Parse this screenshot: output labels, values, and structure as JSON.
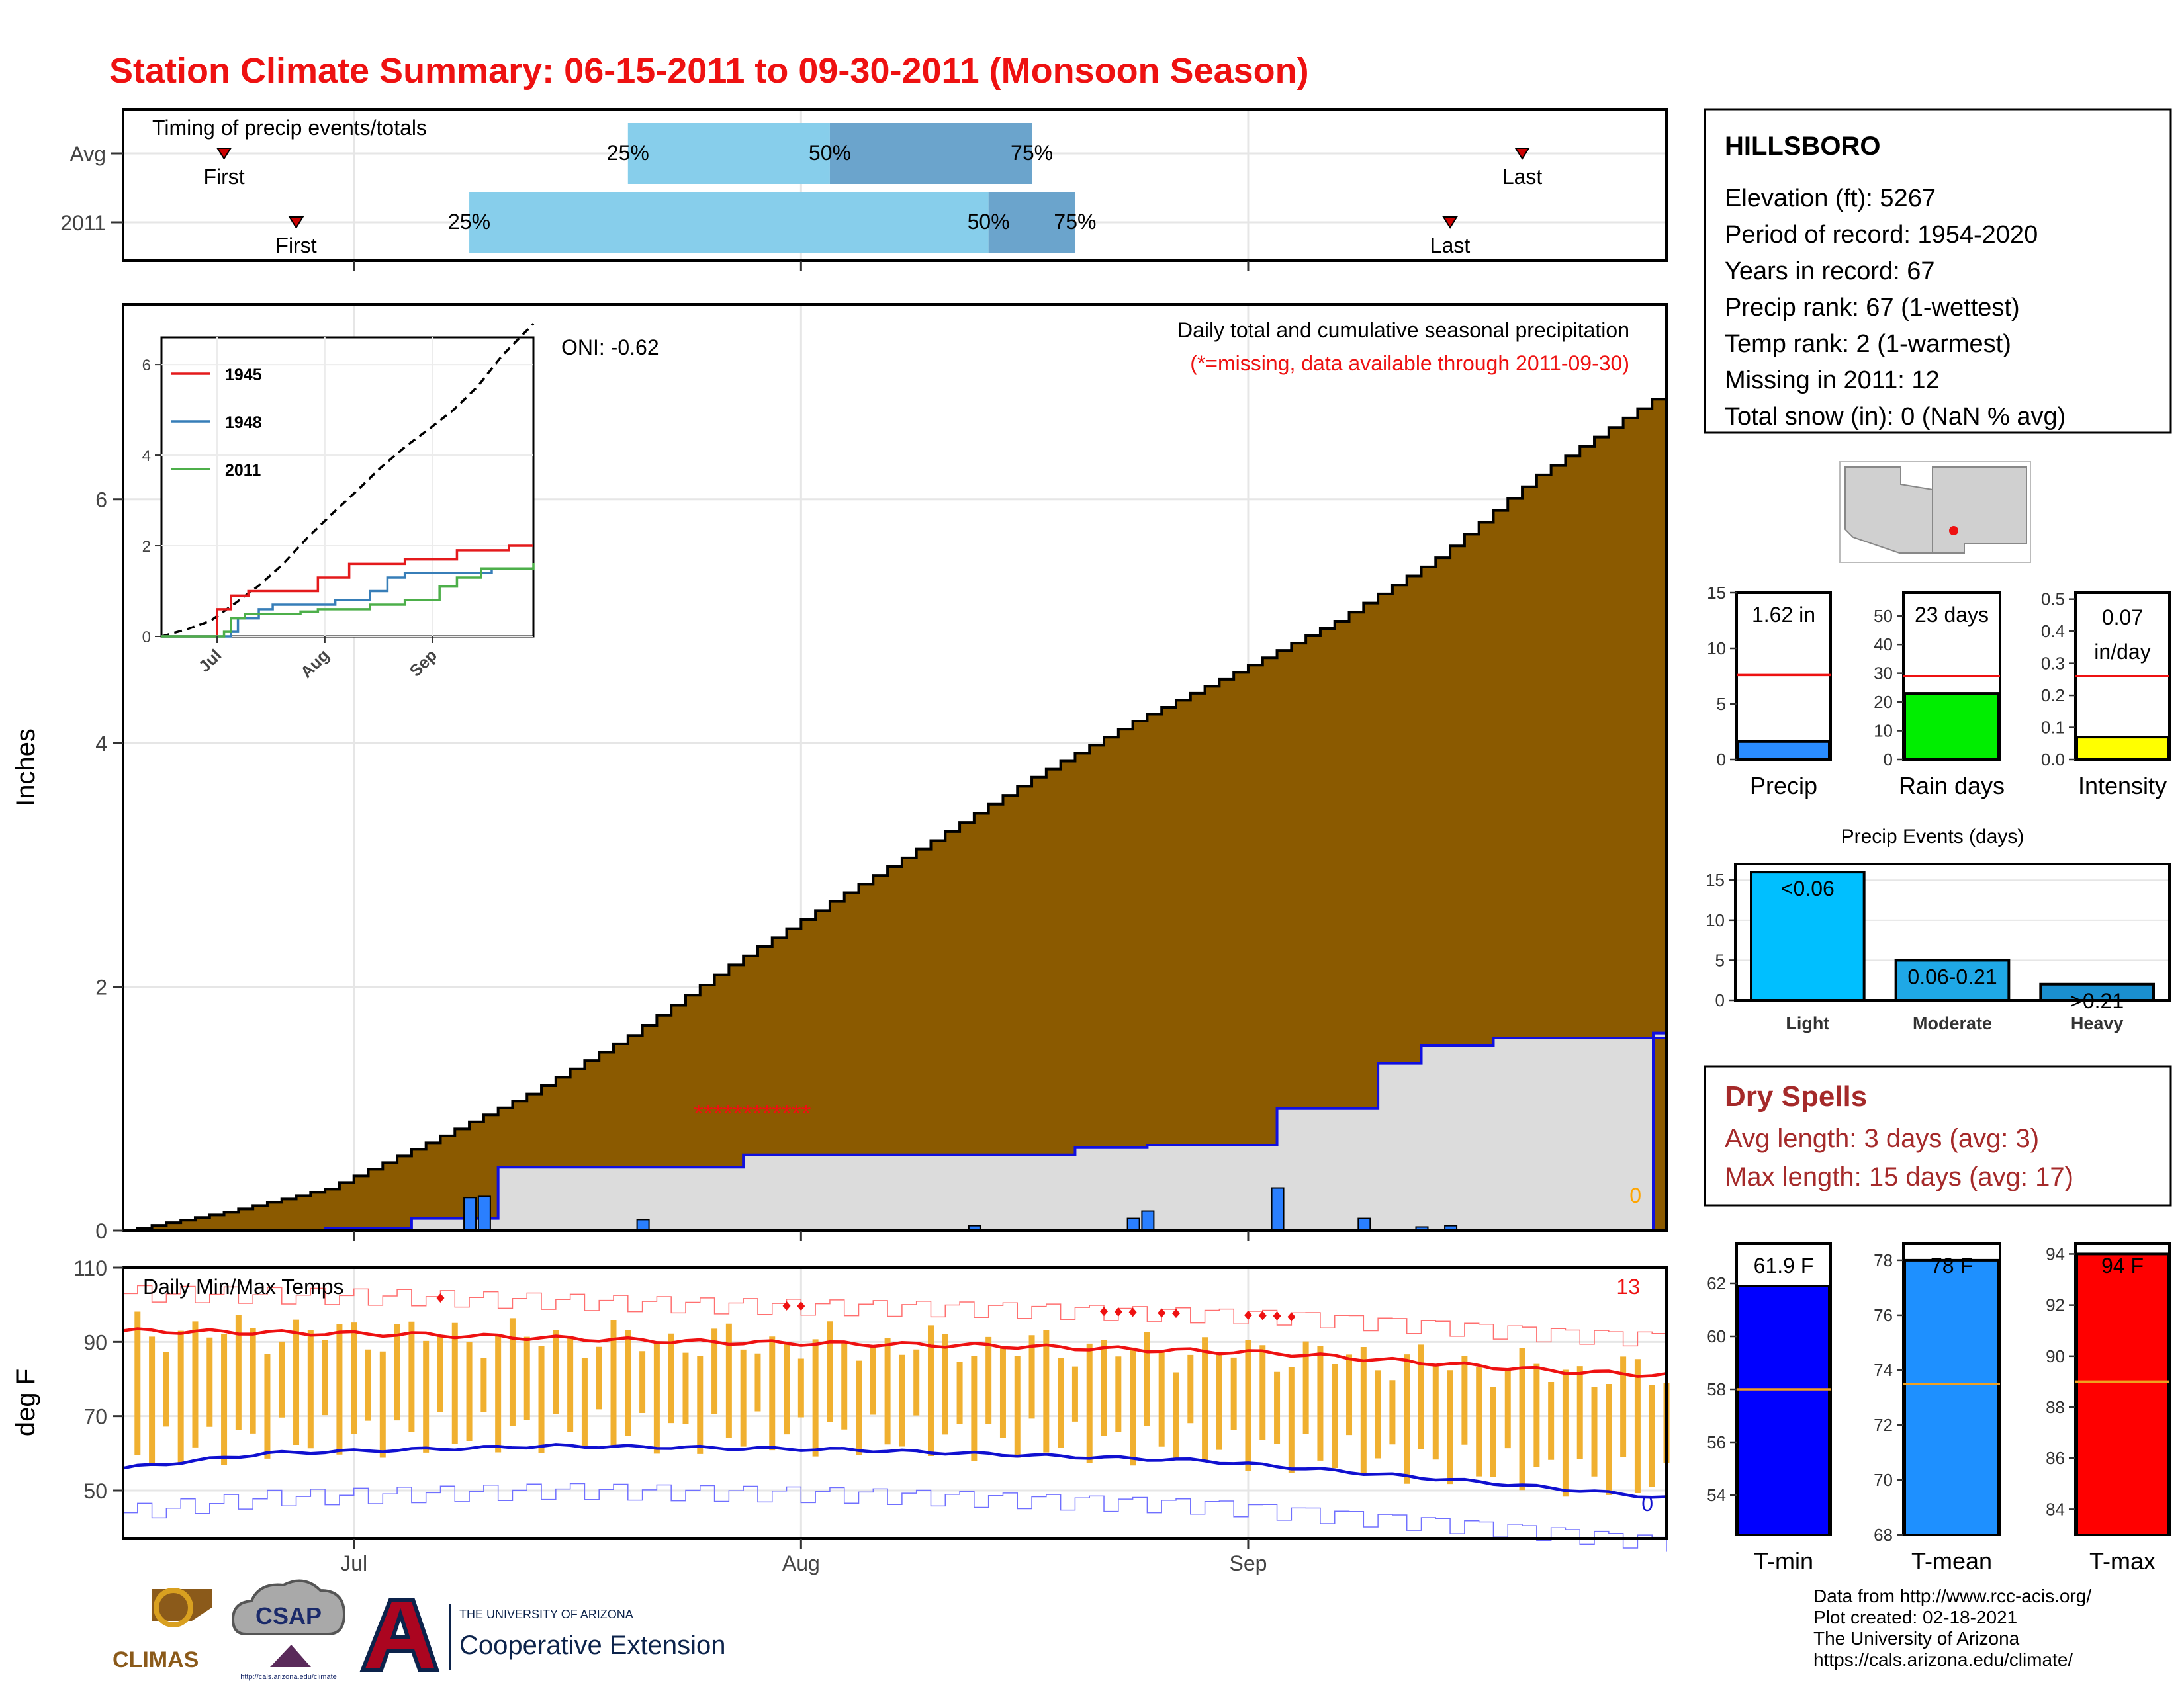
{
  "title": "Station Climate Summary: 06-15-2011 to 09-30-2011 (Monsoon Season)",
  "colors": {
    "title": "#ee1111",
    "cum_avg_fill": "#8b5a00",
    "cum_year_fill": "#dcdcdc",
    "cum_year_line": "#1010e0",
    "daily_bar": "#2a7fff",
    "temp_bar": "#f0b030",
    "tmax_line": "#ee1111",
    "tmin_line": "#1010d0",
    "dry_spell_text": "#a52a2a",
    "light_blue": "#87ceeb",
    "mid_blue": "#6ba4cc"
  },
  "timing_panel": {
    "title": "Timing of precip events/totals",
    "rows": [
      {
        "label": "Avg",
        "first": "2011-06-22",
        "p25": "2011-07-20",
        "p50": "2011-08-03",
        "p75": "2011-08-17",
        "last": "2011-09-20",
        "first_label": "First",
        "last_label": "Last",
        "p25_label": "25%",
        "p50_label": "50%",
        "p75_label": "75%"
      },
      {
        "label": "2011",
        "first": "2011-06-27",
        "p25": "2011-07-09",
        "p50": "2011-08-14",
        "p75": "2011-08-20",
        "last": "2011-09-15",
        "first_label": "First",
        "last_label": "Last",
        "p25_label": "25%",
        "p50_label": "50%",
        "p75_label": "75%"
      }
    ]
  },
  "precip_panel": {
    "ylabel": "Inches",
    "yticks": [
      0,
      2,
      4,
      6
    ],
    "title": "Daily total and cumulative seasonal precipitation",
    "subtitle": "(*=missing, data available through 2011-09-30)",
    "oni": "ONI: -0.62",
    "missing_marker": "************",
    "count_label": "0",
    "xticks": [
      "Jul",
      "Aug",
      "Sep"
    ]
  },
  "chart_data": [
    {
      "type": "area",
      "name": "cumulative-precip",
      "title": "Daily total and cumulative seasonal precipitation",
      "ylabel": "Inches",
      "xlim": [
        "2011-06-15",
        "2011-09-30"
      ],
      "ylim": [
        0,
        7.6
      ],
      "series": [
        {
          "name": "Average cumulative",
          "x": [
            "2011-06-15",
            "2011-06-22",
            "2011-06-29",
            "2011-07-06",
            "2011-07-13",
            "2011-07-20",
            "2011-07-27",
            "2011-08-03",
            "2011-08-10",
            "2011-08-17",
            "2011-08-24",
            "2011-08-31",
            "2011-09-07",
            "2011-09-14",
            "2011-09-21",
            "2011-09-30"
          ],
          "values": [
            0,
            0.15,
            0.34,
            0.72,
            1.12,
            1.6,
            2.18,
            2.7,
            3.2,
            3.72,
            4.18,
            4.58,
            5.0,
            5.52,
            6.2,
            6.9
          ]
        },
        {
          "name": "2011 cumulative",
          "x": [
            "2011-06-15",
            "2011-06-29",
            "2011-07-05",
            "2011-07-10",
            "2011-07-11",
            "2011-07-28",
            "2011-08-10",
            "2011-08-20",
            "2011-08-25",
            "2011-09-03",
            "2011-09-10",
            "2011-09-13",
            "2011-09-18",
            "2011-09-30"
          ],
          "values": [
            0,
            0.02,
            0.1,
            0.1,
            0.52,
            0.62,
            0.62,
            0.68,
            0.7,
            1.0,
            1.37,
            1.52,
            1.58,
            1.62
          ]
        }
      ]
    },
    {
      "type": "bar",
      "name": "daily-precip-2011",
      "x": [
        "2011-07-09",
        "2011-07-10",
        "2011-07-21",
        "2011-08-13",
        "2011-08-24",
        "2011-08-25",
        "2011-09-03",
        "2011-09-09",
        "2011-09-13",
        "2011-09-15"
      ],
      "values": [
        0.27,
        0.28,
        0.09,
        0.04,
        0.1,
        0.16,
        0.35,
        0.1,
        0.03,
        0.04
      ]
    },
    {
      "type": "line",
      "name": "inset-cumulative",
      "categories": [
        "Jul",
        "Aug",
        "Sep"
      ],
      "ylim": [
        0,
        6.6
      ],
      "series": [
        {
          "name": "Average",
          "x": [
            0,
            7,
            14,
            21,
            28,
            35,
            42,
            49,
            56,
            63,
            70,
            77,
            84,
            91,
            98,
            107
          ],
          "values": [
            0,
            0.15,
            0.34,
            0.72,
            1.12,
            1.6,
            2.18,
            2.7,
            3.2,
            3.72,
            4.18,
            4.58,
            5.0,
            5.52,
            6.2,
            6.9
          ]
        },
        {
          "name": "1945",
          "x": [
            0,
            15,
            16,
            20,
            25,
            42,
            45,
            50,
            54,
            70,
            85,
            100,
            107
          ],
          "values": [
            0,
            0,
            0.6,
            0.9,
            1.0,
            1.0,
            1.3,
            1.3,
            1.6,
            1.7,
            1.9,
            2.0,
            2.0
          ]
        },
        {
          "name": "1948",
          "x": [
            0,
            20,
            22,
            28,
            32,
            50,
            60,
            65,
            70,
            85,
            95,
            107
          ],
          "values": [
            0,
            0.1,
            0.4,
            0.6,
            0.7,
            0.8,
            1.0,
            1.3,
            1.4,
            1.4,
            1.5,
            1.5
          ]
        },
        {
          "name": "2011",
          "x": [
            0,
            15,
            18,
            20,
            24,
            26,
            40,
            45,
            55,
            60,
            70,
            80,
            85,
            92,
            100,
            107
          ],
          "values": [
            0,
            0,
            0.1,
            0.4,
            0.5,
            0.5,
            0.55,
            0.6,
            0.6,
            0.7,
            0.8,
            1.1,
            1.3,
            1.5,
            1.5,
            1.62
          ]
        }
      ],
      "legend": [
        "1945",
        "1948",
        "2011"
      ],
      "yticks": [
        0,
        2,
        4,
        6
      ]
    },
    {
      "type": "line",
      "name": "daily-temps",
      "title": "Daily Min/Max Temps",
      "ylabel": "deg F",
      "ylim": [
        37,
        110
      ],
      "yticks": [
        50,
        70,
        90,
        110
      ],
      "xticks": [
        "Jul",
        "Aug",
        "Sep"
      ],
      "tmax_avg": {
        "x": [
          0,
          20,
          40,
          60,
          80,
          100,
          107
        ],
        "values": [
          93,
          92,
          90,
          89,
          87,
          82,
          81
        ]
      },
      "tmin_avg": {
        "x": [
          0,
          10,
          30,
          50,
          75,
          95,
          107
        ],
        "values": [
          56,
          60,
          62,
          61,
          58,
          52,
          48
        ]
      },
      "record_high_count": "13",
      "record_low_count": "0"
    },
    {
      "type": "bar",
      "name": "precip-summary",
      "panels": [
        {
          "label": "Precip",
          "value": 1.62,
          "value_label": "1.62 in",
          "avg": 7.6,
          "ylim": [
            0,
            15
          ],
          "yticks": [
            0,
            5,
            10,
            15
          ],
          "color": "#2a8cff"
        },
        {
          "label": "Rain days",
          "value": 23,
          "value_label": "23 days",
          "avg": 29,
          "ylim": [
            0,
            58
          ],
          "yticks": [
            0,
            10,
            20,
            30,
            40,
            50
          ],
          "color": "#00ee00"
        },
        {
          "label": "Intensity",
          "value": 0.07,
          "value_label": "0.07 in/day",
          "avg": 0.26,
          "ylim": [
            0,
            0.52
          ],
          "yticks": [
            0.0,
            0.1,
            0.2,
            0.3,
            0.4,
            0.5
          ],
          "color": "#ffff00"
        }
      ]
    },
    {
      "type": "bar",
      "name": "precip-events",
      "title": "Precip Events (days)",
      "categories": [
        "Light",
        "Moderate",
        "Heavy"
      ],
      "values": [
        16,
        5,
        2
      ],
      "bar_labels": [
        "<0.06",
        "0.06-0.21",
        ">0.21"
      ],
      "ylim": [
        0,
        17
      ],
      "yticks": [
        0,
        5,
        10,
        15
      ]
    },
    {
      "type": "bar",
      "name": "temp-summary",
      "panels": [
        {
          "label": "T-min",
          "value": 61.9,
          "value_label": "61.9 F",
          "avg": 58,
          "ylim": [
            52.5,
            63.5
          ],
          "yticks": [
            54,
            56,
            58,
            60,
            62
          ],
          "color": "#0000ff"
        },
        {
          "label": "T-mean",
          "value": 78,
          "value_label": "78 F",
          "avg": 73.5,
          "ylim": [
            68,
            78.6
          ],
          "yticks": [
            68,
            70,
            72,
            74,
            76,
            78
          ],
          "color": "#1e90ff"
        },
        {
          "label": "T-max",
          "value": 94,
          "value_label": "94 F",
          "avg": 89,
          "ylim": [
            83,
            94.4
          ],
          "yticks": [
            84,
            86,
            88,
            90,
            92,
            94
          ],
          "color": "#ff0000"
        }
      ]
    }
  ],
  "station": {
    "name": "HILLSBORO",
    "lines": [
      "Elevation (ft): 5267",
      "Period of record: 1954-2020",
      "Years in record: 67",
      "Precip rank: 67 (1-wettest)",
      "Temp rank: 2 (1-warmest)",
      "Missing in 2011: 12",
      "Total snow (in): 0 (NaN % avg)"
    ]
  },
  "dry_spells": {
    "title": "Dry Spells",
    "lines": [
      "Avg length: 3 days (avg: 3)",
      "Max length: 15 days (avg: 17)"
    ]
  },
  "footer": {
    "lines": [
      "Data from http://www.rcc-acis.org/",
      "Plot created: 02-18-2021",
      "The University of Arizona",
      "https://cals.arizona.edu/climate/"
    ]
  },
  "logos": {
    "climas": "CLIMAS",
    "csap": "CSAP",
    "csap_url": "http://cals.arizona.edu/climate",
    "ua_small": "THE UNIVERSITY OF ARIZONA",
    "ua_big": "Cooperative Extension"
  }
}
